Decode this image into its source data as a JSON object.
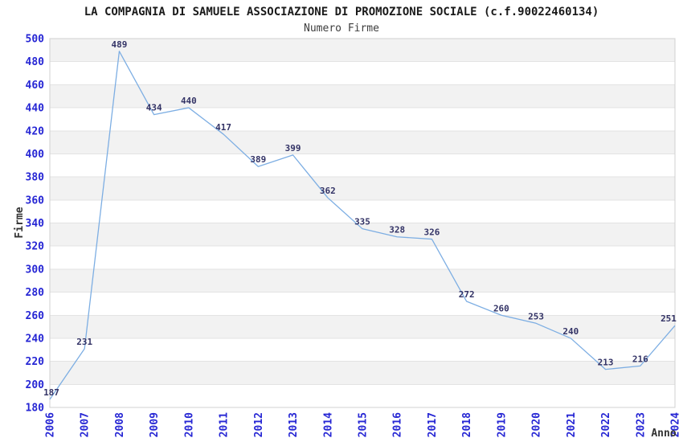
{
  "chart_data": {
    "type": "line",
    "title": "LA COMPAGNIA DI SAMUELE ASSOCIAZIONE DI PROMOZIONE SOCIALE (c.f.90022460134)",
    "subtitle": "Numero Firme",
    "xlabel": "Anno",
    "ylabel": "Firme",
    "categories": [
      "2006",
      "2007",
      "2008",
      "2009",
      "2010",
      "2011",
      "2012",
      "2013",
      "2014",
      "2015",
      "2016",
      "2017",
      "2018",
      "2019",
      "2020",
      "2021",
      "2022",
      "2023",
      "2024"
    ],
    "values": [
      187,
      231,
      489,
      434,
      440,
      417,
      389,
      399,
      362,
      335,
      328,
      326,
      272,
      260,
      253,
      240,
      213,
      216,
      251
    ],
    "ylim": [
      180,
      500
    ],
    "ytick_step": 20,
    "yticks": [
      180,
      200,
      220,
      240,
      260,
      280,
      300,
      320,
      340,
      360,
      380,
      400,
      420,
      440,
      460,
      480,
      500
    ],
    "grid": "horizontal-bands-alternating",
    "legend": "none",
    "data_labels": "shown-above-points",
    "colors": {
      "line": "#7daee3",
      "tick_label": "#2626d4",
      "data_label": "#333366",
      "band_gray": "#f2f2f2",
      "band_white": "#ffffff",
      "gridline": "#e3e3e3",
      "plot_border": "#d0d0d0",
      "title": "#1a1a1a",
      "subtitle": "#3d3d3d",
      "axis_title": "#333333"
    }
  }
}
